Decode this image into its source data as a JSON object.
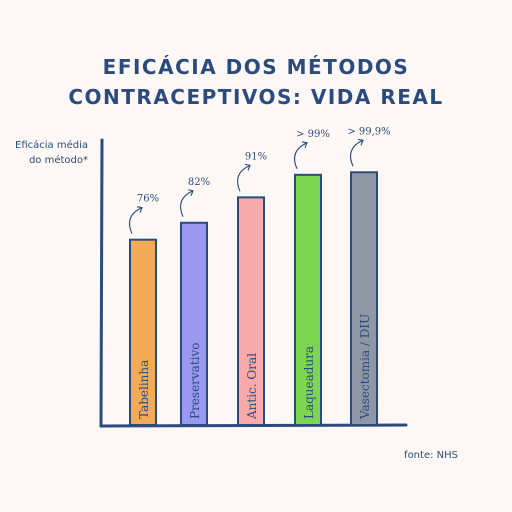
{
  "chart_data": {
    "type": "bar",
    "title_lines": [
      "EFICÁCIA DOS MÉTODOS",
      "CONTRACEPTIVOS: VIDA REAL"
    ],
    "ylabel_lines": [
      "Eficácia média",
      "do método*"
    ],
    "categories": [
      "Tabelinha",
      "Preservativo",
      "Antic. Oral",
      "Laqueadura",
      "Vasectomia / DIU"
    ],
    "values": [
      76,
      82,
      91,
      99,
      99.9
    ],
    "value_labels": [
      "76%",
      "82%",
      "91%",
      "> 99%",
      "> 99,9%"
    ],
    "colors": [
      "#f3ab58",
      "#9b99ef",
      "#f7aaa9",
      "#7dd651",
      "#8f97a5"
    ],
    "ylim": [
      0,
      100
    ],
    "grid": false,
    "legend": "none",
    "source": "fonte: NHS"
  }
}
